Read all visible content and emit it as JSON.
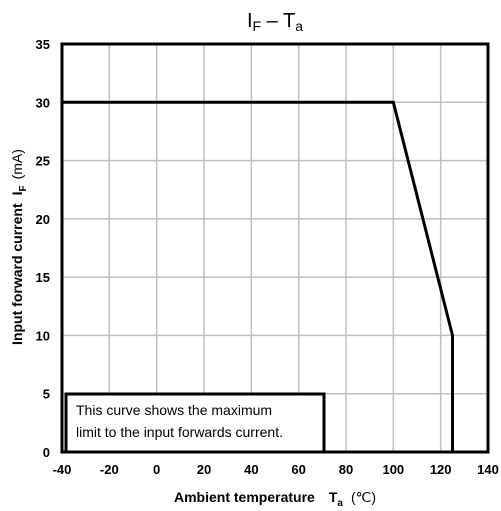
{
  "chart_data": {
    "type": "line",
    "title_main": "I",
    "title_main_sub": "F",
    "title_dash": " – ",
    "title_second": "T",
    "title_second_sub": "a",
    "x": [
      -40,
      100,
      125,
      125
    ],
    "y": [
      30,
      30,
      10,
      0
    ],
    "xlim": [
      -40,
      140
    ],
    "ylim": [
      0,
      35
    ],
    "x_ticks": [
      -40,
      -20,
      0,
      20,
      40,
      60,
      80,
      100,
      120,
      140
    ],
    "y_ticks": [
      0,
      5,
      10,
      15,
      20,
      25,
      30,
      35
    ],
    "x_tick_labels": [
      "-40",
      "-20",
      "0",
      "20",
      "40",
      "60",
      "80",
      "100",
      "120",
      "140"
    ],
    "y_tick_labels": [
      "0",
      "5",
      "10",
      "15",
      "20",
      "25",
      "30",
      "35"
    ],
    "xlabel": "Ambient temperature",
    "xlabel_symbol": "T",
    "xlabel_symbol_sub": "a",
    "xlabel_unit": "(℃)",
    "ylabel": "Input forward current",
    "ylabel_symbol": "I",
    "ylabel_symbol_sub": "F",
    "ylabel_unit": "(mA)",
    "grid": true,
    "annotation": {
      "line1": "This curve shows the maximum",
      "line2": "limit to the input forwards current."
    },
    "colors": {
      "line": "#000000",
      "grid": "#bfbfbf",
      "frame": "#000000"
    }
  }
}
